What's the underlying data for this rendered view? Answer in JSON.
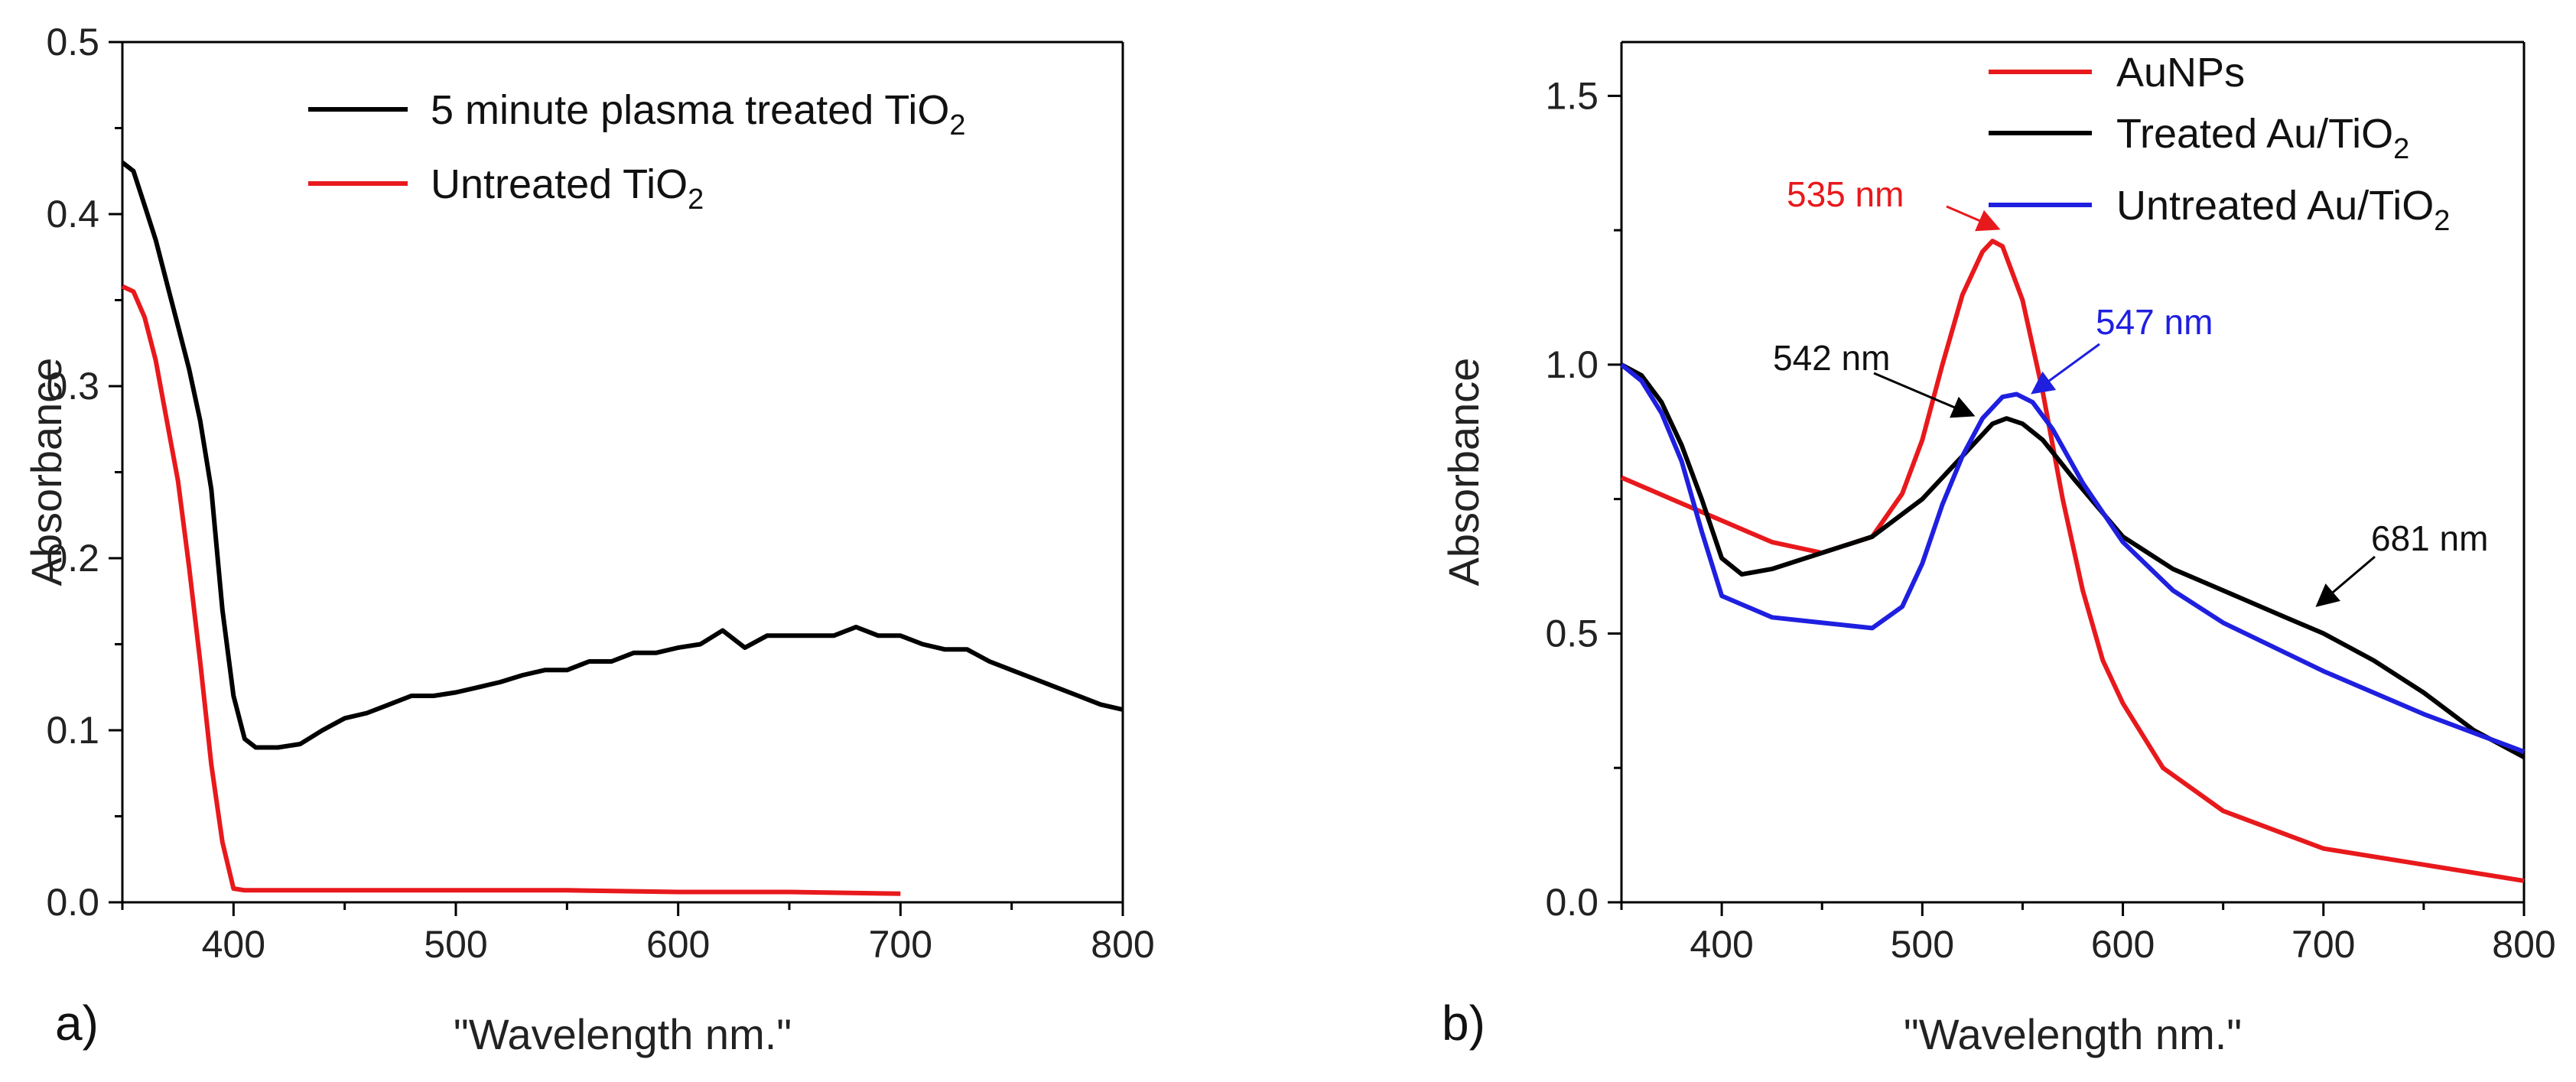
{
  "chart_data": [
    {
      "type": "line",
      "panel_label": "a)",
      "title": "",
      "xlabel": "\"Wavelength nm.\"",
      "ylabel": "Absorbance",
      "xlim": [
        350,
        800
      ],
      "ylim": [
        0.0,
        0.5
      ],
      "xticks": [
        "400",
        "500",
        "600",
        "700",
        "800"
      ],
      "yticks": [
        "0.0",
        "0.1",
        "0.2",
        "0.3",
        "0.4",
        "0.5"
      ],
      "legend_position": "top-right",
      "series": [
        {
          "name": "5 minute plasma treated TiO",
          "subscript": "2",
          "color": "#000000",
          "x": [
            350,
            355,
            360,
            365,
            370,
            375,
            380,
            385,
            390,
            395,
            400,
            405,
            410,
            420,
            430,
            440,
            450,
            460,
            470,
            480,
            490,
            500,
            510,
            520,
            530,
            540,
            550,
            560,
            570,
            580,
            590,
            600,
            610,
            620,
            630,
            640,
            650,
            660,
            670,
            680,
            690,
            700,
            710,
            720,
            730,
            740,
            750,
            760,
            770,
            780,
            790,
            800
          ],
          "y": [
            0.43,
            0.425,
            0.405,
            0.385,
            0.36,
            0.335,
            0.31,
            0.28,
            0.24,
            0.17,
            0.12,
            0.095,
            0.09,
            0.09,
            0.092,
            0.1,
            0.107,
            0.11,
            0.115,
            0.12,
            0.12,
            0.122,
            0.125,
            0.128,
            0.132,
            0.135,
            0.135,
            0.14,
            0.14,
            0.145,
            0.145,
            0.148,
            0.15,
            0.158,
            0.148,
            0.155,
            0.155,
            0.155,
            0.155,
            0.16,
            0.155,
            0.155,
            0.15,
            0.147,
            0.147,
            0.14,
            0.135,
            0.13,
            0.125,
            0.12,
            0.115,
            0.112
          ]
        },
        {
          "name": "Untreated TiO",
          "subscript": "2",
          "color": "#e8191c",
          "x": [
            350,
            355,
            360,
            365,
            370,
            375,
            380,
            385,
            390,
            395,
            400,
            405,
            420,
            450,
            500,
            550,
            600,
            650,
            700
          ],
          "y": [
            0.358,
            0.355,
            0.34,
            0.315,
            0.28,
            0.245,
            0.195,
            0.14,
            0.08,
            0.035,
            0.008,
            0.007,
            0.007,
            0.007,
            0.007,
            0.007,
            0.006,
            0.006,
            0.005
          ]
        }
      ]
    },
    {
      "type": "line",
      "panel_label": "b)",
      "title": "",
      "xlabel": "\"Wavelength nm.\"",
      "ylabel": "Absorbance",
      "xlim": [
        350,
        800
      ],
      "ylim": [
        0.0,
        1.6
      ],
      "xticks": [
        "400",
        "500",
        "600",
        "700",
        "800"
      ],
      "yticks": [
        "0.0",
        "0.5",
        "1.0",
        "1.5"
      ],
      "legend_position": "top-right",
      "series": [
        {
          "name": "AuNPs",
          "subscript": "",
          "color": "#e8191c",
          "x": [
            350,
            375,
            400,
            425,
            450,
            475,
            490,
            500,
            510,
            520,
            530,
            535,
            540,
            550,
            560,
            570,
            580,
            590,
            600,
            620,
            650,
            700,
            750,
            800
          ],
          "y": [
            0.79,
            0.75,
            0.71,
            0.67,
            0.65,
            0.68,
            0.76,
            0.86,
            1.0,
            1.13,
            1.21,
            1.23,
            1.22,
            1.12,
            0.95,
            0.75,
            0.58,
            0.45,
            0.37,
            0.25,
            0.17,
            0.1,
            0.07,
            0.04
          ]
        },
        {
          "name": "Treated Au/TiO",
          "subscript": "2",
          "color": "#000000",
          "x": [
            350,
            360,
            370,
            380,
            390,
            400,
            410,
            425,
            450,
            475,
            500,
            520,
            535,
            542,
            550,
            560,
            575,
            600,
            625,
            650,
            681,
            700,
            725,
            750,
            775,
            800
          ],
          "y": [
            1.0,
            0.98,
            0.93,
            0.85,
            0.75,
            0.64,
            0.61,
            0.62,
            0.65,
            0.68,
            0.75,
            0.83,
            0.89,
            0.9,
            0.89,
            0.86,
            0.79,
            0.68,
            0.62,
            0.58,
            0.53,
            0.5,
            0.45,
            0.39,
            0.32,
            0.27
          ]
        },
        {
          "name": "Untreated Au/TiO",
          "subscript": "2",
          "color": "#1f1fe0",
          "x": [
            350,
            360,
            370,
            380,
            390,
            400,
            425,
            450,
            475,
            490,
            500,
            510,
            520,
            530,
            540,
            547,
            555,
            565,
            580,
            600,
            625,
            650,
            700,
            750,
            800
          ],
          "y": [
            1.0,
            0.97,
            0.91,
            0.82,
            0.69,
            0.57,
            0.53,
            0.52,
            0.51,
            0.55,
            0.63,
            0.74,
            0.83,
            0.9,
            0.94,
            0.945,
            0.93,
            0.88,
            0.78,
            0.67,
            0.58,
            0.52,
            0.43,
            0.35,
            0.28
          ]
        }
      ],
      "annotations": [
        {
          "text": "535 nm",
          "color": "#e8191c",
          "x": 535,
          "y": 1.23
        },
        {
          "text": "542 nm",
          "color": "#000000",
          "x": 542,
          "y": 0.9
        },
        {
          "text": "547 nm",
          "color": "#1f1fe0",
          "x": 547,
          "y": 0.945
        },
        {
          "text": "681 nm",
          "color": "#000000",
          "x": 693,
          "y": 0.52
        }
      ]
    }
  ]
}
